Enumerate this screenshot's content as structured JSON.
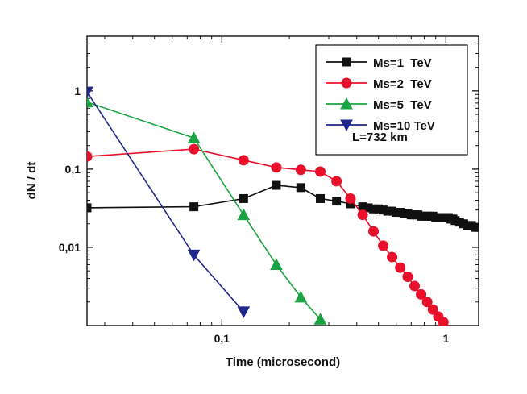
{
  "chart_data": {
    "type": "line",
    "title": "",
    "xlabel": "Time (microsecond)",
    "ylabel": "dN / dt",
    "xscale": "log",
    "yscale": "log",
    "xlim": [
      0.025,
      1.4
    ],
    "ylim": [
      0.001,
      5
    ],
    "x_ticks": [
      {
        "value": 0.1,
        "label": "0,1"
      },
      {
        "value": 1,
        "label": "1"
      }
    ],
    "y_ticks": [
      {
        "value": 0.01,
        "label": "0,01"
      },
      {
        "value": 0.1,
        "label": "0,1"
      },
      {
        "value": 1,
        "label": "1"
      }
    ],
    "legend_position": "top-right",
    "annotation": "L=732 km",
    "series": [
      {
        "name": "Ms=1  TeV",
        "color": "#111111",
        "marker": "square",
        "x": [
          0.025,
          0.075,
          0.125,
          0.175,
          0.225,
          0.275,
          0.325,
          0.375,
          0.425,
          0.45,
          0.475,
          0.5,
          0.525,
          0.55,
          0.575,
          0.6,
          0.625,
          0.65,
          0.675,
          0.7,
          0.725,
          0.75,
          0.775,
          0.8,
          0.825,
          0.85,
          0.875,
          0.9,
          0.925,
          0.95,
          0.975,
          1.0,
          1.025,
          1.05,
          1.075,
          1.1,
          1.15,
          1.2,
          1.25,
          1.3,
          1.35,
          1.4
        ],
        "y": [
          0.032,
          0.033,
          0.042,
          0.062,
          0.058,
          0.042,
          0.039,
          0.036,
          0.033,
          0.032,
          0.031,
          0.031,
          0.03,
          0.029,
          0.029,
          0.028,
          0.028,
          0.027,
          0.027,
          0.026,
          0.026,
          0.026,
          0.025,
          0.025,
          0.025,
          0.025,
          0.025,
          0.024,
          0.024,
          0.024,
          0.024,
          0.024,
          0.024,
          0.023,
          0.023,
          0.022,
          0.021,
          0.02,
          0.019,
          0.019,
          0.018,
          0.018
        ]
      },
      {
        "name": "Ms=2  TeV",
        "color": "#e8102a",
        "marker": "circle",
        "x": [
          0.025,
          0.075,
          0.125,
          0.175,
          0.225,
          0.275,
          0.325,
          0.375,
          0.425,
          0.475,
          0.525,
          0.575,
          0.625,
          0.675,
          0.725,
          0.775,
          0.825,
          0.875,
          0.925,
          0.975
        ],
        "y": [
          0.145,
          0.18,
          0.13,
          0.105,
          0.098,
          0.093,
          0.07,
          0.042,
          0.026,
          0.016,
          0.0105,
          0.0075,
          0.0055,
          0.0042,
          0.0032,
          0.0025,
          0.002,
          0.0016,
          0.0013,
          0.0011
        ]
      },
      {
        "name": "Ms=5  TeV",
        "color": "#1aa343",
        "marker": "triangle-up",
        "x": [
          0.025,
          0.075,
          0.125,
          0.175,
          0.225,
          0.275
        ],
        "y": [
          0.72,
          0.25,
          0.026,
          0.006,
          0.0023,
          0.0012
        ]
      },
      {
        "name": "Ms=10 TeV",
        "color": "#21288c",
        "marker": "triangle-down",
        "x": [
          0.025,
          0.075,
          0.125
        ],
        "y": [
          0.97,
          0.008,
          0.0015
        ]
      }
    ]
  }
}
